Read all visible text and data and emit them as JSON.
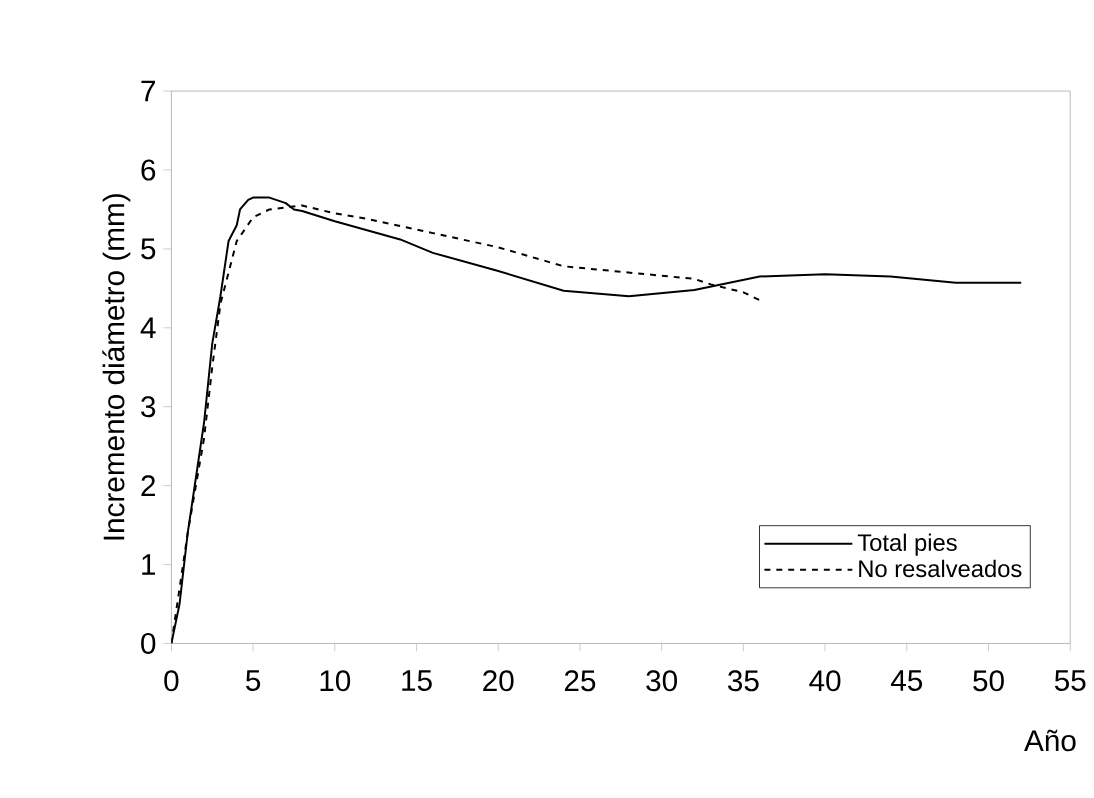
{
  "chart_data": {
    "type": "line",
    "xlabel": "Año",
    "ylabel": "Incremento diámetro (mm)",
    "xlim": [
      0,
      55
    ],
    "ylim": [
      0,
      7
    ],
    "xticks": [
      0,
      5,
      10,
      15,
      20,
      25,
      30,
      35,
      40,
      45,
      50,
      55
    ],
    "yticks": [
      0,
      1,
      2,
      3,
      4,
      5,
      6,
      7
    ],
    "legend": "bottom right",
    "marker": "none",
    "grid": false,
    "series": [
      {
        "name": "Total pies",
        "color": "#000000",
        "line_style": "solid",
        "x": [
          0,
          0.5,
          1,
          2,
          2.5,
          3,
          3.5,
          4,
          4.2,
          4.7,
          5,
          6,
          7,
          7.5,
          8,
          10,
          14,
          16,
          20,
          24,
          28,
          32,
          36,
          40,
          44,
          48,
          52
        ],
        "values": [
          0,
          0.5,
          1.4,
          2.8,
          3.8,
          4.4,
          5.1,
          5.3,
          5.5,
          5.62,
          5.65,
          5.65,
          5.58,
          5.5,
          5.48,
          5.35,
          5.12,
          4.95,
          4.72,
          4.47,
          4.4,
          4.48,
          4.65,
          4.68,
          4.65,
          4.57,
          4.57
        ]
      },
      {
        "name": "No resalveados",
        "color": "#000000",
        "line_style": "dashed",
        "x": [
          0,
          0.5,
          1,
          2,
          2.5,
          3,
          3.5,
          4,
          5,
          6,
          8,
          10,
          12,
          16,
          20,
          24,
          28,
          32,
          33,
          35,
          36
        ],
        "values": [
          0,
          0.7,
          1.4,
          2.6,
          3.5,
          4.3,
          4.7,
          5.1,
          5.4,
          5.5,
          5.55,
          5.45,
          5.38,
          5.2,
          5.02,
          4.78,
          4.7,
          4.62,
          4.55,
          4.45,
          4.35
        ]
      }
    ]
  }
}
